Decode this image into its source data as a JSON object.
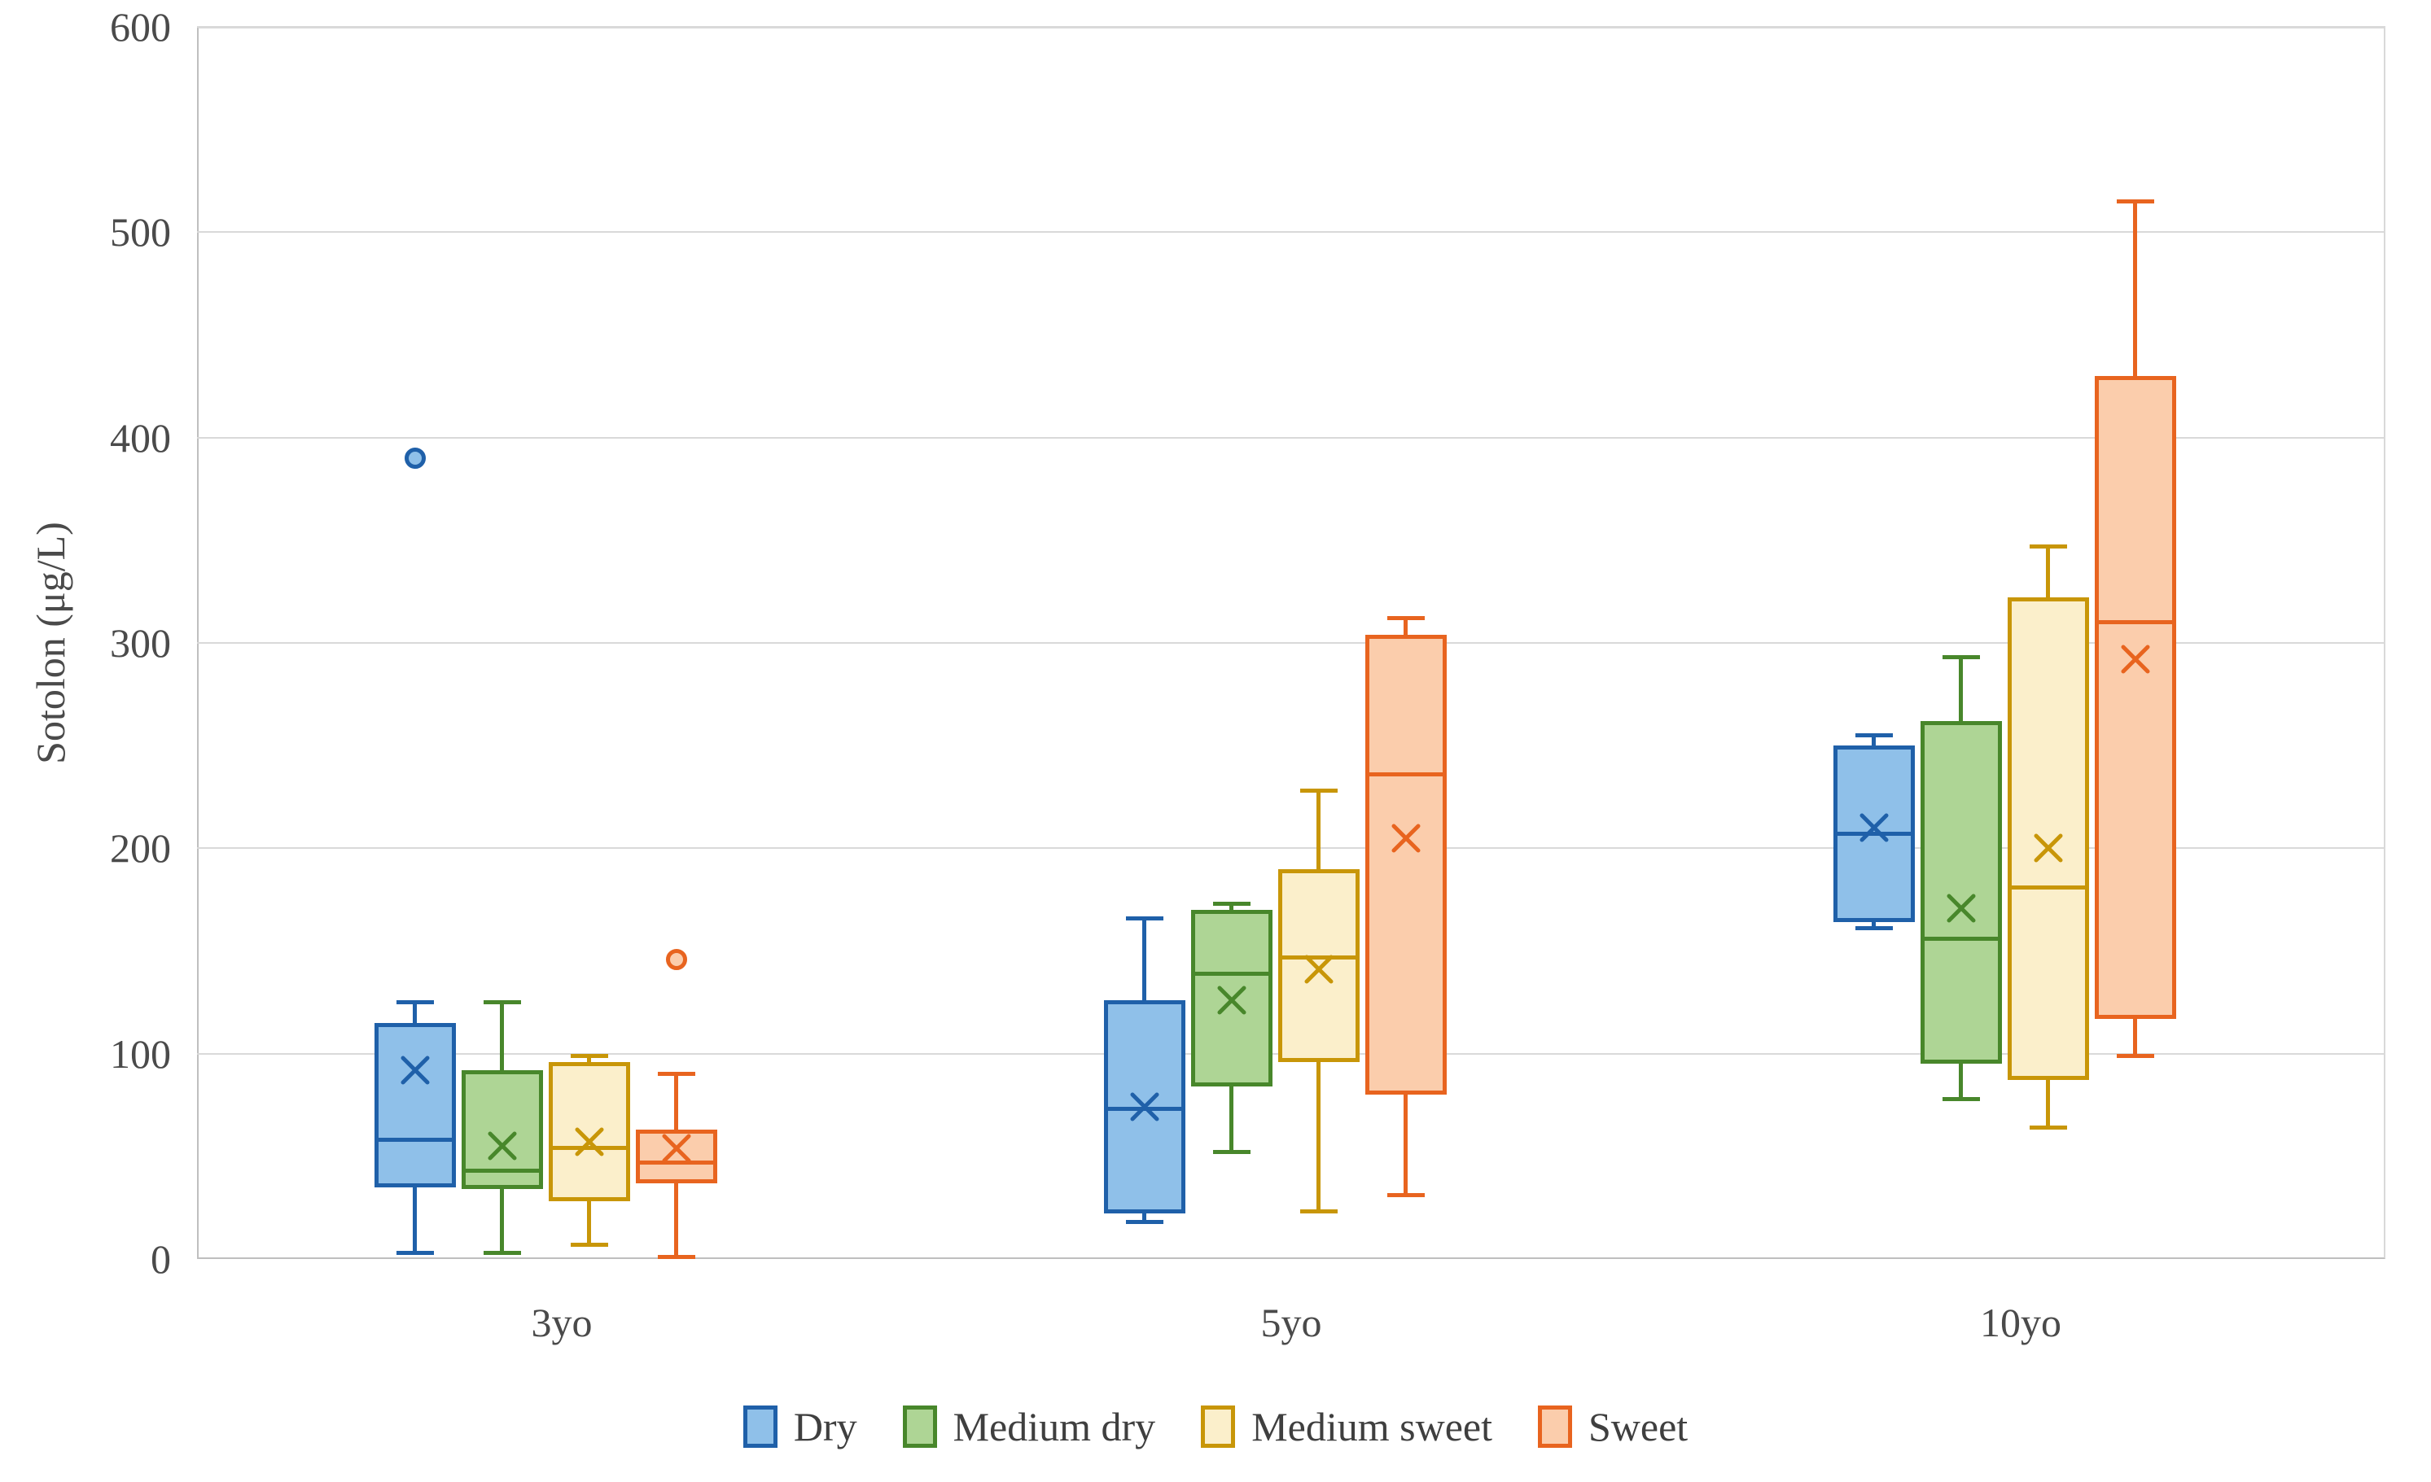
{
  "chart_data": {
    "type": "boxplot",
    "title": "",
    "xlabel": "",
    "ylabel": "Sotolon (μg/L)",
    "ylim": [
      0,
      600
    ],
    "yticks": [
      0,
      100,
      200,
      300,
      400,
      500,
      600
    ],
    "grid": "horizontal",
    "legend_position": "bottom",
    "categories": [
      "3yo",
      "5yo",
      "10yo"
    ],
    "series": [
      {
        "name": "Dry",
        "fill": "#8fc0e9",
        "border": "#1f60a9",
        "stats": [
          {
            "min": 3,
            "q1": 35,
            "median": 58,
            "q3": 115,
            "max": 125,
            "mean": 92,
            "outliers": [
              390
            ]
          },
          {
            "min": 18,
            "q1": 22,
            "median": 73,
            "q3": 126,
            "max": 166,
            "mean": 74,
            "outliers": []
          },
          {
            "min": 161,
            "q1": 164,
            "median": 207,
            "q3": 250,
            "max": 255,
            "mean": 210,
            "outliers": []
          }
        ]
      },
      {
        "name": "Medium dry",
        "fill": "#aed595",
        "border": "#48872b",
        "stats": [
          {
            "min": 3,
            "q1": 34,
            "median": 43,
            "q3": 92,
            "max": 125,
            "mean": 55,
            "outliers": []
          },
          {
            "min": 52,
            "q1": 84,
            "median": 139,
            "q3": 170,
            "max": 173,
            "mean": 126,
            "outliers": []
          },
          {
            "min": 78,
            "q1": 95,
            "median": 156,
            "q3": 262,
            "max": 293,
            "mean": 171,
            "outliers": []
          }
        ]
      },
      {
        "name": "Medium sweet",
        "fill": "#fbefcb",
        "border": "#c89608",
        "stats": [
          {
            "min": 7,
            "q1": 28,
            "median": 54,
            "q3": 96,
            "max": 99,
            "mean": 57,
            "outliers": []
          },
          {
            "min": 23,
            "q1": 96,
            "median": 147,
            "q3": 190,
            "max": 228,
            "mean": 141,
            "outliers": []
          },
          {
            "min": 64,
            "q1": 87,
            "median": 181,
            "q3": 322,
            "max": 347,
            "mean": 200,
            "outliers": []
          }
        ]
      },
      {
        "name": "Sweet",
        "fill": "#fbcdac",
        "border": "#e8641f",
        "stats": [
          {
            "min": 1,
            "q1": 37,
            "median": 47,
            "q3": 63,
            "max": 90,
            "mean": 54,
            "outliers": [
              146
            ]
          },
          {
            "min": 31,
            "q1": 80,
            "median": 236,
            "q3": 304,
            "max": 312,
            "mean": 205,
            "outliers": []
          },
          {
            "min": 99,
            "q1": 117,
            "median": 310,
            "q3": 430,
            "max": 515,
            "mean": 292,
            "outliers": []
          }
        ]
      }
    ]
  },
  "layout_colors": {
    "gridline": "#d9d9d9",
    "axis_line": "#bfbfbf",
    "text": "#4a4a4a"
  }
}
